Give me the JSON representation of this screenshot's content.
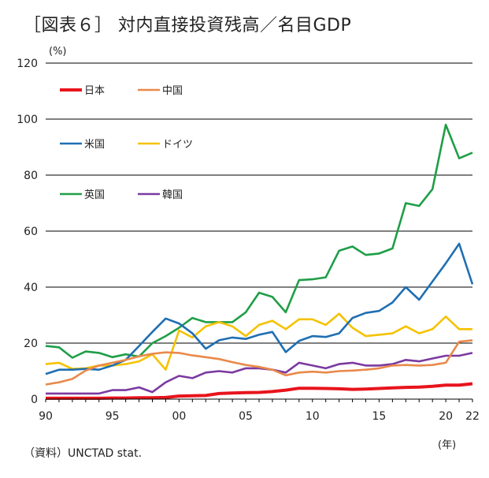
{
  "title": "［図表６］ 対内直接投資残高／名目GDP",
  "source": "（資料）UNCTAD stat.",
  "chart_data": {
    "type": "line",
    "title": "［図表６］ 対内直接投資残高／名目GDP",
    "ylabel": "(%)",
    "xlabel": "(年)",
    "ylim": [
      0,
      120
    ],
    "xlim": [
      1990,
      2022
    ],
    "y_ticks": [
      "0",
      "20",
      "40",
      "60",
      "80",
      "100",
      "120"
    ],
    "x_ticks": [
      "90",
      "95",
      "00",
      "05",
      "10",
      "15",
      "20",
      "22"
    ],
    "grid": true,
    "legend_position": "top-left",
    "x": [
      1990,
      1991,
      1992,
      1993,
      1994,
      1995,
      1996,
      1997,
      1998,
      1999,
      2000,
      2001,
      2002,
      2003,
      2004,
      2005,
      2006,
      2007,
      2008,
      2009,
      2010,
      2011,
      2012,
      2013,
      2014,
      2015,
      2016,
      2017,
      2018,
      2019,
      2020,
      2021,
      2022
    ],
    "series": [
      {
        "name": "日本",
        "color": "#e8141c",
        "values": [
          0.3,
          0.3,
          0.3,
          0.3,
          0.3,
          0.4,
          0.4,
          0.5,
          0.5,
          0.6,
          1.1,
          1.2,
          1.3,
          2.0,
          2.2,
          2.3,
          2.4,
          2.7,
          3.2,
          3.9,
          3.9,
          3.8,
          3.7,
          3.5,
          3.6,
          3.8,
          4.0,
          4.2,
          4.3,
          4.6,
          5.0,
          5.0,
          5.5
        ]
      },
      {
        "name": "中国",
        "color": "#e9894a",
        "values": [
          5.2,
          6.0,
          7.2,
          10.2,
          12.0,
          13.0,
          14.0,
          15.3,
          16.2,
          16.7,
          16.5,
          15.6,
          15.0,
          14.3,
          13.2,
          12.2,
          11.5,
          10.5,
          8.5,
          9.5,
          9.8,
          9.5,
          10.0,
          10.2,
          10.5,
          11.0,
          12.0,
          12.2,
          12.0,
          12.2,
          13.0,
          20.5,
          21.0
        ]
      },
      {
        "name": "米国",
        "color": "#1f6fb3",
        "values": [
          9.0,
          10.5,
          10.5,
          10.8,
          10.5,
          12.0,
          14.0,
          19.0,
          24.0,
          28.8,
          27.0,
          23.5,
          18.0,
          21.0,
          22.0,
          21.5,
          23.0,
          24.0,
          16.8,
          20.8,
          22.5,
          22.2,
          23.5,
          29.0,
          30.8,
          31.5,
          34.5,
          40.0,
          35.5,
          42.0,
          48.5,
          55.5,
          41.0
        ]
      },
      {
        "name": "ドイツ",
        "color": "#f5c200",
        "values": [
          12.5,
          13.0,
          10.8,
          11.0,
          12.0,
          12.0,
          12.5,
          13.5,
          16.0,
          10.5,
          24.5,
          22.0,
          26.0,
          27.5,
          26.0,
          22.5,
          26.5,
          28.0,
          25.0,
          28.5,
          28.5,
          26.5,
          30.5,
          25.5,
          22.5,
          23.0,
          23.5,
          26.0,
          23.5,
          25.0,
          29.5,
          25.0,
          25.0
        ]
      },
      {
        "name": "英国",
        "color": "#1f9e47",
        "values": [
          19.0,
          18.5,
          14.8,
          17.0,
          16.5,
          15.0,
          16.0,
          15.2,
          20.0,
          22.5,
          25.5,
          29.0,
          27.5,
          27.5,
          27.5,
          31.0,
          38.0,
          36.5,
          31.0,
          42.5,
          42.8,
          43.5,
          53.0,
          54.5,
          51.5,
          52.0,
          53.8,
          70.0,
          69.0,
          75.0,
          98.0,
          86.0,
          88.0
        ]
      },
      {
        "name": "韓国",
        "color": "#7b3aa0",
        "values": [
          2.0,
          2.0,
          2.0,
          2.0,
          2.0,
          3.2,
          3.2,
          4.2,
          2.5,
          6.0,
          8.3,
          7.5,
          9.5,
          10.0,
          9.5,
          11.0,
          11.0,
          10.5,
          9.5,
          13.0,
          12.0,
          11.0,
          12.5,
          13.0,
          12.0,
          12.0,
          12.5,
          14.0,
          13.5,
          14.5,
          15.5,
          15.5,
          16.5
        ]
      }
    ]
  }
}
